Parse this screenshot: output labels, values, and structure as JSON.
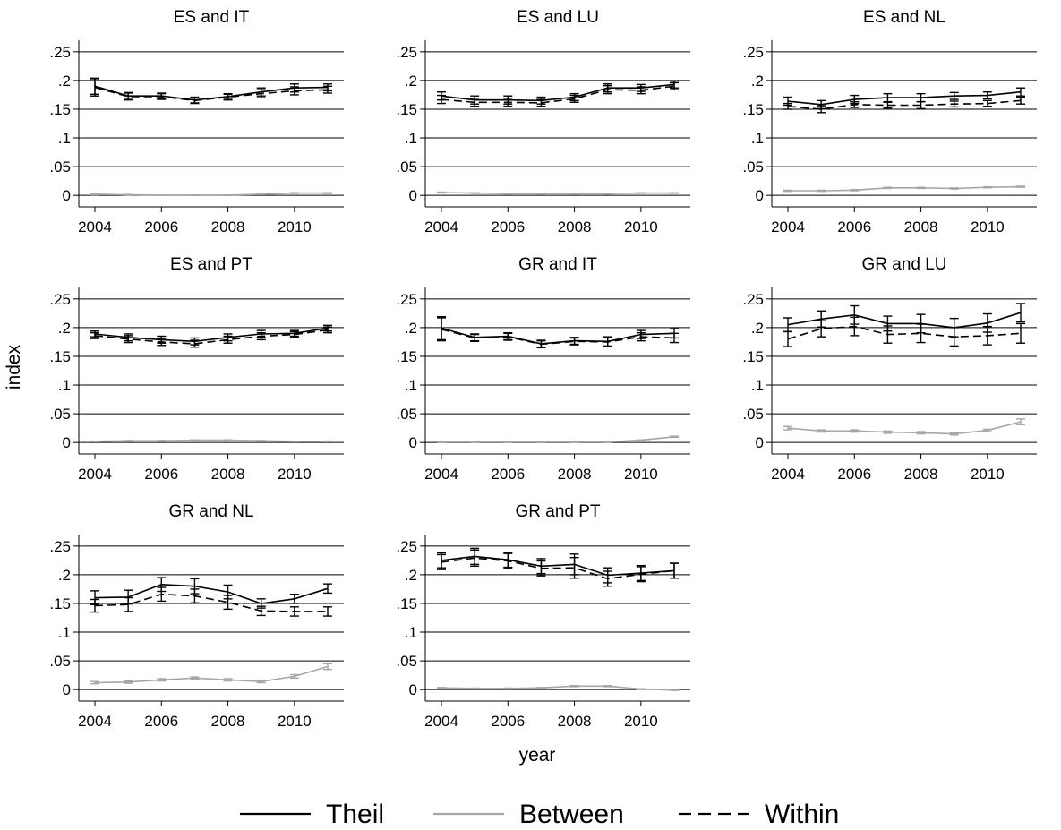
{
  "figure": {
    "y_axis_label": "index",
    "x_axis_label": "year"
  },
  "legend": {
    "position": "bottom-center",
    "entries": [
      {
        "name": "Theil",
        "color": "#000000",
        "dash": "solid"
      },
      {
        "name": "Between",
        "color": "#a6a6a6",
        "dash": "solid"
      },
      {
        "name": "Within",
        "color": "#000000",
        "dash": "dashed"
      }
    ]
  },
  "chart_data": [
    {
      "type": "line",
      "title": "ES and IT",
      "x": [
        2004,
        2005,
        2006,
        2007,
        2008,
        2009,
        2010,
        2011
      ],
      "ylim": [
        -0.02,
        0.27
      ],
      "yticks": [
        0,
        0.05,
        0.1,
        0.15,
        0.2,
        0.25
      ],
      "yticklabels": [
        "0",
        ".05",
        ".1",
        ".15",
        ".2",
        ".25"
      ],
      "xticks": [
        2004,
        2006,
        2008,
        2010
      ],
      "grid": "horizontal",
      "series": [
        {
          "name": "Theil",
          "values": [
            0.19,
            0.173,
            0.173,
            0.166,
            0.172,
            0.18,
            0.187,
            0.188
          ],
          "err": [
            0.014,
            0.006,
            0.005,
            0.005,
            0.005,
            0.007,
            0.007,
            0.006
          ]
        },
        {
          "name": "Within",
          "values": [
            0.188,
            0.172,
            0.172,
            0.165,
            0.171,
            0.177,
            0.182,
            0.184
          ],
          "err": [
            0.015,
            0.006,
            0.005,
            0.005,
            0.005,
            0.007,
            0.007,
            0.006
          ]
        },
        {
          "name": "Between",
          "values": [
            0.002,
            0.001,
            0.0005,
            0.0005,
            0.0005,
            0.002,
            0.004,
            0.004
          ],
          "err": [
            0.001,
            0.0005,
            0.0003,
            0.0003,
            0.0003,
            0.0005,
            0.0007,
            0.0007
          ]
        }
      ]
    },
    {
      "type": "line",
      "title": "ES and LU",
      "x": [
        2004,
        2005,
        2006,
        2007,
        2008,
        2009,
        2010,
        2011
      ],
      "ylim": [
        -0.02,
        0.27
      ],
      "yticks": [
        0,
        0.05,
        0.1,
        0.15,
        0.2,
        0.25
      ],
      "yticklabels": [
        "0",
        ".05",
        ".1",
        ".15",
        ".2",
        ".25"
      ],
      "xticks": [
        2004,
        2006,
        2008,
        2010
      ],
      "grid": "horizontal",
      "series": [
        {
          "name": "Theil",
          "values": [
            0.173,
            0.166,
            0.166,
            0.165,
            0.171,
            0.187,
            0.187,
            0.193
          ],
          "err": [
            0.007,
            0.007,
            0.007,
            0.006,
            0.006,
            0.007,
            0.006,
            0.006
          ]
        },
        {
          "name": "Within",
          "values": [
            0.167,
            0.162,
            0.162,
            0.161,
            0.168,
            0.184,
            0.183,
            0.19
          ],
          "err": [
            0.007,
            0.007,
            0.007,
            0.006,
            0.006,
            0.007,
            0.006,
            0.006
          ]
        },
        {
          "name": "Between",
          "values": [
            0.005,
            0.004,
            0.003,
            0.003,
            0.003,
            0.003,
            0.004,
            0.004
          ],
          "err": [
            0.0007,
            0.0005,
            0.0005,
            0.0005,
            0.0005,
            0.0005,
            0.0005,
            0.0005
          ]
        }
      ]
    },
    {
      "type": "line",
      "title": "ES and NL",
      "x": [
        2004,
        2005,
        2006,
        2007,
        2008,
        2009,
        2010,
        2011
      ],
      "ylim": [
        -0.02,
        0.27
      ],
      "yticks": [
        0,
        0.05,
        0.1,
        0.15,
        0.2,
        0.25
      ],
      "yticklabels": [
        "0",
        ".05",
        ".1",
        ".15",
        ".2",
        ".25"
      ],
      "xticks": [
        2004,
        2006,
        2008,
        2010
      ],
      "grid": "horizontal",
      "series": [
        {
          "name": "Theil",
          "values": [
            0.164,
            0.158,
            0.167,
            0.17,
            0.17,
            0.173,
            0.174,
            0.18
          ],
          "err": [
            0.007,
            0.007,
            0.007,
            0.007,
            0.007,
            0.006,
            0.006,
            0.007
          ]
        },
        {
          "name": "Within",
          "values": [
            0.155,
            0.15,
            0.158,
            0.157,
            0.157,
            0.159,
            0.16,
            0.165
          ],
          "err": [
            0.005,
            0.006,
            0.005,
            0.005,
            0.006,
            0.005,
            0.005,
            0.006
          ]
        },
        {
          "name": "Between",
          "values": [
            0.008,
            0.008,
            0.009,
            0.013,
            0.013,
            0.012,
            0.014,
            0.015
          ],
          "err": [
            0.001,
            0.001,
            0.001,
            0.001,
            0.001,
            0.001,
            0.001,
            0.001
          ]
        }
      ]
    },
    {
      "type": "line",
      "title": "ES and PT",
      "x": [
        2004,
        2005,
        2006,
        2007,
        2008,
        2009,
        2010,
        2011
      ],
      "ylim": [
        -0.02,
        0.27
      ],
      "yticks": [
        0,
        0.05,
        0.1,
        0.15,
        0.2,
        0.25
      ],
      "yticklabels": [
        "0",
        ".05",
        ".1",
        ".15",
        ".2",
        ".25"
      ],
      "xticks": [
        2004,
        2006,
        2008,
        2010
      ],
      "grid": "horizontal",
      "series": [
        {
          "name": "Theil",
          "values": [
            0.189,
            0.183,
            0.179,
            0.176,
            0.183,
            0.189,
            0.19,
            0.199
          ],
          "err": [
            0.005,
            0.006,
            0.006,
            0.006,
            0.006,
            0.006,
            0.005,
            0.005
          ]
        },
        {
          "name": "Within",
          "values": [
            0.186,
            0.18,
            0.175,
            0.172,
            0.179,
            0.185,
            0.188,
            0.196
          ],
          "err": [
            0.005,
            0.006,
            0.006,
            0.006,
            0.006,
            0.006,
            0.005,
            0.005
          ]
        },
        {
          "name": "Between",
          "values": [
            0.002,
            0.003,
            0.003,
            0.004,
            0.004,
            0.003,
            0.002,
            0.002
          ],
          "err": [
            0.0005,
            0.0005,
            0.0005,
            0.0005,
            0.0005,
            0.0005,
            0.0005,
            0.0005
          ]
        }
      ]
    },
    {
      "type": "line",
      "title": "GR and IT",
      "x": [
        2004,
        2005,
        2006,
        2007,
        2008,
        2009,
        2010,
        2011
      ],
      "ylim": [
        -0.02,
        0.27
      ],
      "yticks": [
        0,
        0.05,
        0.1,
        0.15,
        0.2,
        0.25
      ],
      "yticklabels": [
        "0",
        ".05",
        ".1",
        ".15",
        ".2",
        ".25"
      ],
      "xticks": [
        2004,
        2006,
        2008,
        2010
      ],
      "grid": "horizontal",
      "series": [
        {
          "name": "Theil",
          "values": [
            0.199,
            0.183,
            0.185,
            0.172,
            0.177,
            0.176,
            0.188,
            0.19
          ],
          "err": [
            0.02,
            0.006,
            0.006,
            0.006,
            0.006,
            0.008,
            0.007,
            0.008
          ]
        },
        {
          "name": "Within",
          "values": [
            0.197,
            0.182,
            0.184,
            0.171,
            0.176,
            0.175,
            0.184,
            0.182
          ],
          "err": [
            0.02,
            0.006,
            0.006,
            0.006,
            0.006,
            0.008,
            0.007,
            0.008
          ]
        },
        {
          "name": "Between",
          "values": [
            0.001,
            0.001,
            0.001,
            0.001,
            0.001,
            0.001,
            0.004,
            0.01
          ],
          "err": [
            0.0003,
            0.0003,
            0.0003,
            0.0003,
            0.0003,
            0.0003,
            0.0005,
            0.001
          ]
        }
      ]
    },
    {
      "type": "line",
      "title": "GR and LU",
      "x": [
        2004,
        2005,
        2006,
        2007,
        2008,
        2009,
        2010,
        2011
      ],
      "ylim": [
        -0.02,
        0.27
      ],
      "yticks": [
        0,
        0.05,
        0.1,
        0.15,
        0.2,
        0.25
      ],
      "yticklabels": [
        "0",
        ".05",
        ".1",
        ".15",
        ".2",
        ".25"
      ],
      "xticks": [
        2004,
        2006,
        2008,
        2010
      ],
      "grid": "horizontal",
      "series": [
        {
          "name": "Theil",
          "values": [
            0.205,
            0.215,
            0.222,
            0.207,
            0.207,
            0.2,
            0.208,
            0.226
          ],
          "err": [
            0.012,
            0.014,
            0.016,
            0.013,
            0.016,
            0.016,
            0.016,
            0.016
          ]
        },
        {
          "name": "Within",
          "values": [
            0.18,
            0.198,
            0.202,
            0.188,
            0.19,
            0.184,
            0.186,
            0.19
          ],
          "err": [
            0.013,
            0.014,
            0.016,
            0.015,
            0.016,
            0.016,
            0.016,
            0.017
          ]
        },
        {
          "name": "Between",
          "values": [
            0.025,
            0.02,
            0.02,
            0.018,
            0.017,
            0.015,
            0.021,
            0.036
          ],
          "err": [
            0.003,
            0.002,
            0.002,
            0.002,
            0.002,
            0.002,
            0.002,
            0.005
          ]
        }
      ]
    },
    {
      "type": "line",
      "title": "GR and NL",
      "x": [
        2004,
        2005,
        2006,
        2007,
        2008,
        2009,
        2010,
        2011
      ],
      "ylim": [
        -0.02,
        0.27
      ],
      "yticks": [
        0,
        0.05,
        0.1,
        0.15,
        0.2,
        0.25
      ],
      "yticklabels": [
        "0",
        ".05",
        ".1",
        ".15",
        ".2",
        ".25"
      ],
      "xticks": [
        2004,
        2006,
        2008,
        2010
      ],
      "grid": "horizontal",
      "series": [
        {
          "name": "Theil",
          "values": [
            0.16,
            0.161,
            0.183,
            0.18,
            0.17,
            0.15,
            0.158,
            0.176
          ],
          "err": [
            0.012,
            0.012,
            0.012,
            0.013,
            0.012,
            0.008,
            0.008,
            0.008
          ]
        },
        {
          "name": "Within",
          "values": [
            0.146,
            0.148,
            0.166,
            0.163,
            0.152,
            0.137,
            0.136,
            0.136
          ],
          "err": [
            0.011,
            0.012,
            0.012,
            0.012,
            0.012,
            0.008,
            0.008,
            0.008
          ]
        },
        {
          "name": "Between",
          "values": [
            0.012,
            0.013,
            0.017,
            0.02,
            0.017,
            0.014,
            0.023,
            0.04
          ],
          "err": [
            0.002,
            0.002,
            0.002,
            0.002,
            0.002,
            0.002,
            0.003,
            0.005
          ]
        }
      ]
    },
    {
      "type": "line",
      "title": "GR and PT",
      "x": [
        2004,
        2005,
        2006,
        2007,
        2008,
        2009,
        2010,
        2011
      ],
      "ylim": [
        -0.02,
        0.27
      ],
      "yticks": [
        0,
        0.05,
        0.1,
        0.15,
        0.2,
        0.25
      ],
      "yticklabels": [
        "0",
        ".05",
        ".1",
        ".15",
        ".2",
        ".25"
      ],
      "xticks": [
        2004,
        2006,
        2008,
        2010
      ],
      "grid": "horizontal",
      "series": [
        {
          "name": "Theil",
          "values": [
            0.225,
            0.232,
            0.226,
            0.215,
            0.218,
            0.199,
            0.203,
            0.207
          ],
          "err": [
            0.013,
            0.014,
            0.013,
            0.013,
            0.018,
            0.013,
            0.013,
            0.013
          ]
        },
        {
          "name": "Within",
          "values": [
            0.222,
            0.229,
            0.224,
            0.211,
            0.212,
            0.193,
            0.201,
            0.207
          ],
          "err": [
            0.013,
            0.014,
            0.013,
            0.013,
            0.018,
            0.013,
            0.013,
            0.013
          ]
        },
        {
          "name": "Between",
          "values": [
            0.003,
            0.002,
            0.002,
            0.003,
            0.006,
            0.006,
            0.001,
            -0.001
          ],
          "err": [
            0.0007,
            0.0007,
            0.0007,
            0.0007,
            0.001,
            0.001,
            0.0005,
            0.0005
          ]
        }
      ]
    }
  ]
}
